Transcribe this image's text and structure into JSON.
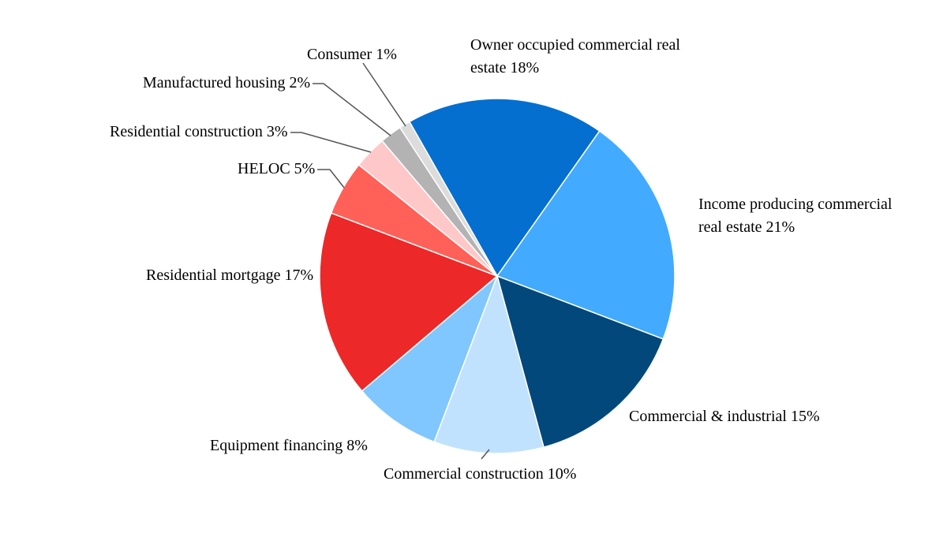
{
  "chart_data": {
    "type": "pie",
    "categories": [
      "Owner occupied commercial real estate",
      "Income producing commercial real estate",
      "Commercial & industrial",
      "Commercial construction",
      "Equipment financing",
      "Residential mortgage",
      "HELOC",
      "Residential construction",
      "Manufactured housing",
      "Consumer"
    ],
    "values": [
      18,
      21,
      15,
      10,
      8,
      17,
      5,
      3,
      2,
      1
    ],
    "value_labels": [
      "18%",
      "21%",
      "15%",
      "10%",
      "8%",
      "17%",
      "5%",
      "3%",
      "2%",
      "1%"
    ],
    "colors": [
      "#056fd0",
      "#42aaff",
      "#02487a",
      "#c0e2ff",
      "#80c6ff",
      "#ec2828",
      "#ff6057",
      "#ffc8c8",
      "#b3b3b3",
      "#dcdcdc"
    ]
  }
}
